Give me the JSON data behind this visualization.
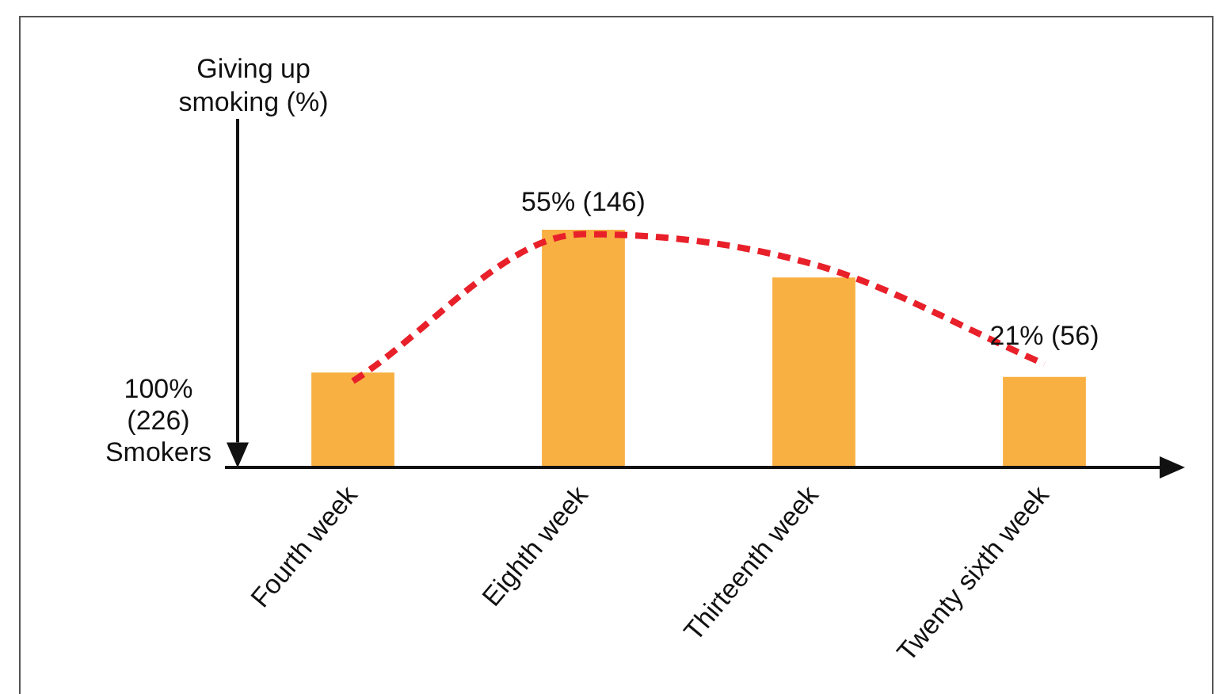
{
  "chart_data": {
    "type": "bar",
    "ylabel": "Giving up\nsmoking (%)",
    "categories": [
      "Fourth week",
      "Eighth week",
      "Thirteenth week",
      "Twenty sixth week"
    ],
    "series": [
      {
        "color": "#f9b042",
        "values": [
          22,
          55,
          44,
          21
        ],
        "value_labels": [
          null,
          "55% (146)",
          null,
          "21% (56)"
        ]
      },
      {
        "type": "line",
        "color": "#e8202a",
        "values": [
          20,
          54,
          47,
          24
        ],
        "line_style": "dashed",
        "marker": "none"
      }
    ],
    "annotations": [
      "100%\n(226)\nSmokers"
    ],
    "grid": false,
    "legend": false,
    "tick_labels": "x"
  }
}
